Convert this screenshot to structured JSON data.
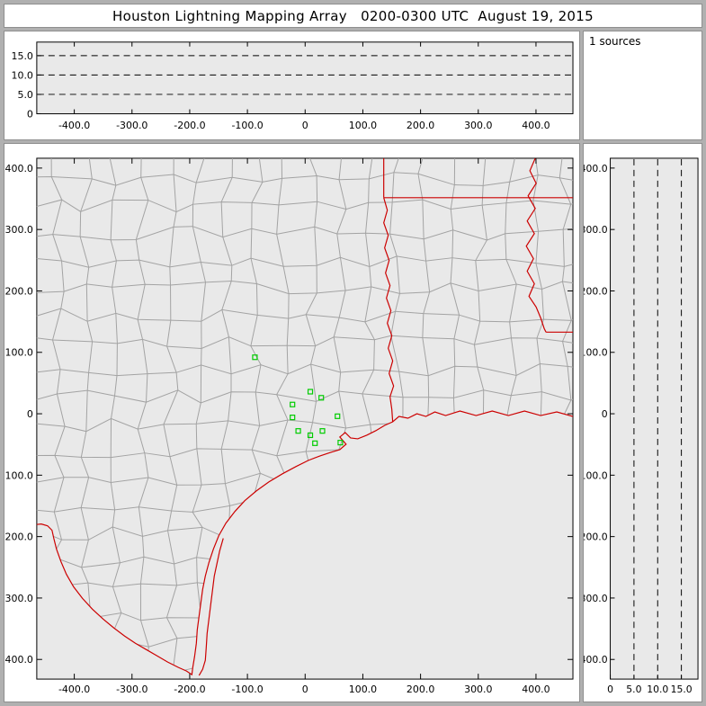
{
  "title": "Houston Lightning Mapping Array   0200-0300 UTC  August 19, 2015",
  "sources_panel": {
    "label": "1 sources"
  },
  "colors": {
    "frame": "#b0b0b0",
    "panel_bg": "#ffffff",
    "plot_bg": "#e9e9e9",
    "axis": "#000000",
    "state_border": "#cc0000",
    "county_line": "#a3a3a3",
    "station": "#00cc00"
  },
  "chart_data": [
    {
      "name": "altitude-vs-east-west",
      "type": "scatter",
      "x_range": [
        -465,
        464
      ],
      "y_range": [
        0,
        18.5
      ],
      "x_ticks": [
        -400,
        -300,
        -200,
        -100,
        0,
        100,
        200,
        300,
        400
      ],
      "x_tick_labels": [
        "-400.0",
        "-300.0",
        "-200.0",
        "-100.0",
        "0",
        "100.0",
        "200.0",
        "300.0",
        "400.0"
      ],
      "y_ticks": [
        0,
        5,
        10,
        15
      ],
      "y_tick_labels": [
        "0",
        "5.0",
        "10.0",
        "15.0"
      ],
      "dashed_gridlines_at": [
        5,
        10,
        15
      ],
      "points": []
    },
    {
      "name": "plan-view-map",
      "type": "scatter",
      "x_range": [
        -465,
        464
      ],
      "y_range": [
        -432,
        416
      ],
      "x_ticks": [
        -400,
        -300,
        -200,
        -100,
        0,
        100,
        200,
        300,
        400
      ],
      "x_tick_labels": [
        "-400.0",
        "-300.0",
        "-200.0",
        "-100.0",
        "0",
        "100.0",
        "200.0",
        "300.0",
        "400.0"
      ],
      "y_ticks": [
        400,
        300,
        200,
        100,
        0,
        -100,
        -200,
        -300,
        -400
      ],
      "y_tick_labels": [
        "400.0",
        "300.0",
        "200.0",
        "100.0",
        "0",
        "-100.0",
        "-200.0",
        "-300.0",
        "-400.0"
      ],
      "stations_km": [
        [
          -87,
          92
        ],
        [
          -22,
          15
        ],
        [
          9,
          36
        ],
        [
          28,
          26
        ],
        [
          -22,
          -6
        ],
        [
          -12,
          -28
        ],
        [
          9,
          -35
        ],
        [
          30,
          -28
        ],
        [
          17,
          -48
        ],
        [
          56,
          -4
        ],
        [
          61,
          -47
        ]
      ],
      "map_layers": [
        "county-boundaries",
        "state-borders",
        "coastline",
        "barrier-island",
        "lma-stations"
      ]
    },
    {
      "name": "altitude-vs-north-south",
      "type": "scatter",
      "x_range": [
        0,
        18.5
      ],
      "y_range": [
        -432,
        416
      ],
      "x_ticks": [
        0,
        5,
        10,
        15
      ],
      "x_tick_labels": [
        "0",
        "5.0",
        "10.0",
        "15.0"
      ],
      "y_ticks": [
        400,
        300,
        200,
        100,
        0,
        -100,
        -200,
        -300,
        -400
      ],
      "y_tick_labels": [
        "400.0",
        "300.0",
        "200.0",
        "100.0",
        "0",
        "-100.0",
        "-200.0",
        "-300.0",
        "-400.0"
      ],
      "dashed_gridlines_at": [
        5,
        10,
        15
      ],
      "points": []
    }
  ]
}
